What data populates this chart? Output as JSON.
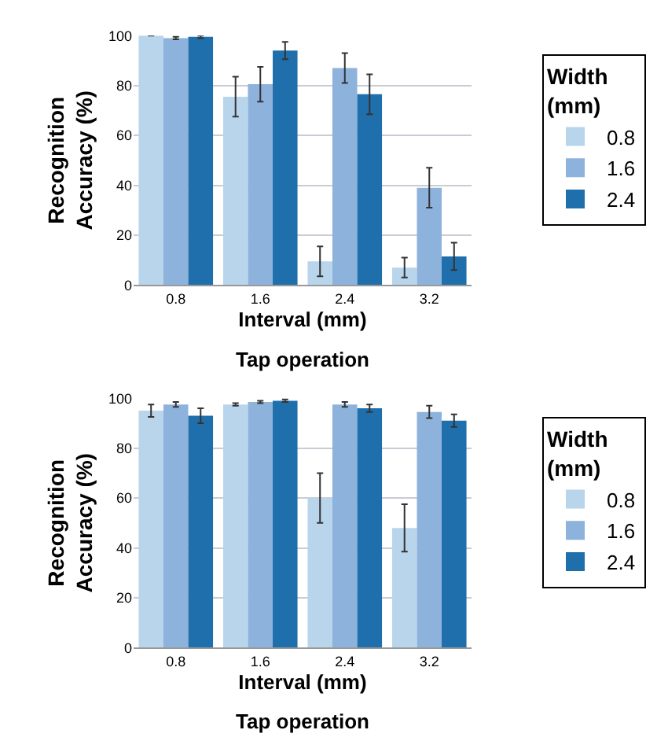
{
  "chart_data": [
    {
      "type": "bar",
      "categories": [
        "0.8",
        "1.6",
        "2.4",
        "3.2"
      ],
      "xlabel": "Interval (mm)",
      "ylabel": "Recognition Accuracy (%)",
      "legend_title": "Width (mm)",
      "ylim": [
        0,
        100
      ],
      "yticks": [
        0,
        20,
        40,
        60,
        80,
        100
      ],
      "grid": "y",
      "legend": "right",
      "annotations": [
        "Tap operation"
      ],
      "series": [
        {
          "name": "0.8",
          "color": "#b8d5ec",
          "values": [
            100,
            75.5,
            9.5,
            7
          ],
          "errors": [
            null,
            8,
            6,
            4
          ]
        },
        {
          "name": "1.6",
          "color": "#8db2dc",
          "values": [
            99,
            80.5,
            87,
            39
          ],
          "errors": [
            0.5,
            7,
            6,
            8
          ]
        },
        {
          "name": "2.4",
          "color": "#1f6fad",
          "values": [
            99.5,
            94,
            76.5,
            11.5
          ],
          "errors": [
            0.5,
            3.5,
            8,
            5.5
          ]
        }
      ]
    },
    {
      "type": "bar",
      "categories": [
        "0.8",
        "1.6",
        "2.4",
        "3.2"
      ],
      "xlabel": "Interval (mm)",
      "ylabel": "Recognition Accuracy (%)",
      "legend_title": "Width (mm)",
      "ylim": [
        0,
        100
      ],
      "yticks": [
        0,
        20,
        40,
        60,
        80,
        100
      ],
      "grid": "y",
      "legend": "right",
      "annotations": [
        "Tap operation"
      ],
      "series": [
        {
          "name": "0.8",
          "color": "#b8d5ec",
          "values": [
            95,
            97.5,
            60,
            48
          ],
          "errors": [
            2.5,
            0.5,
            10,
            9.5
          ]
        },
        {
          "name": "1.6",
          "color": "#8db2dc",
          "values": [
            97.5,
            98.5,
            97.5,
            94.5
          ],
          "errors": [
            1,
            0.5,
            1,
            2.5
          ]
        },
        {
          "name": "2.4",
          "color": "#1f6fad",
          "values": [
            93,
            99,
            96,
            91
          ],
          "errors": [
            3,
            0.5,
            1.5,
            2.5
          ]
        }
      ]
    }
  ]
}
